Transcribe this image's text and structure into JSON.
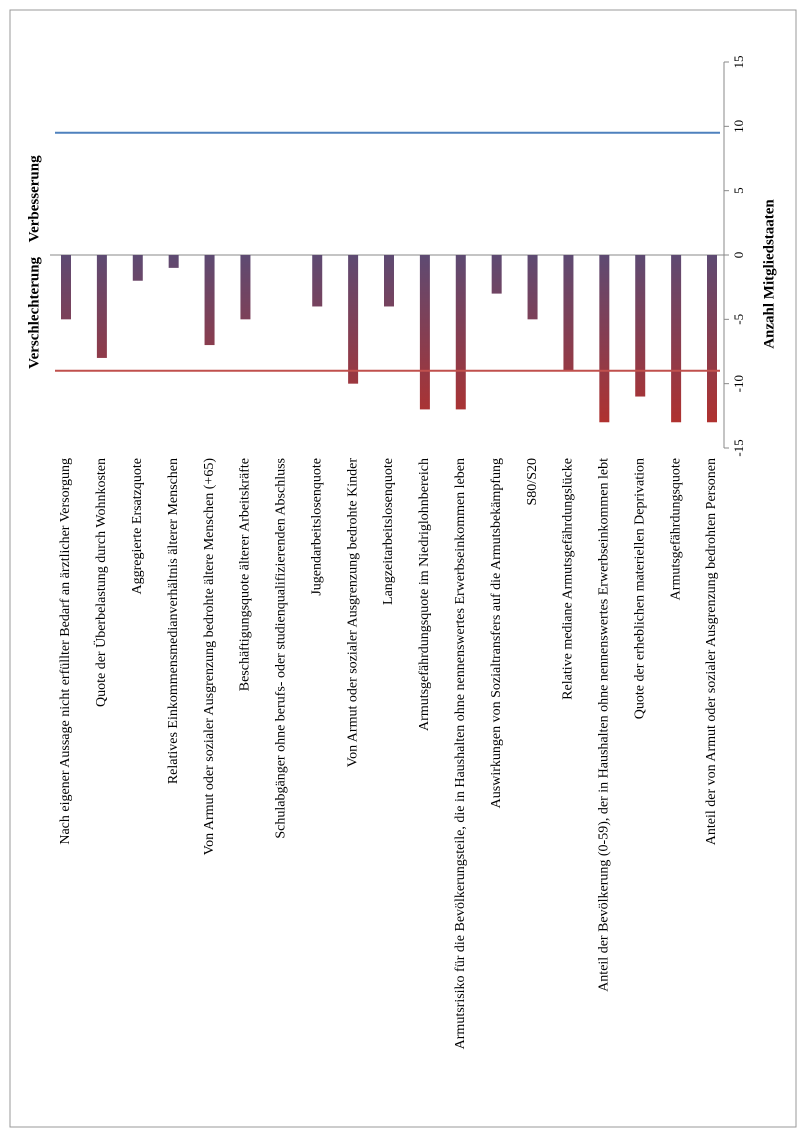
{
  "chart_data": {
    "type": "bar",
    "categories": [
      "Nach eigener Aussage nicht erfüllter Bedarf an ärztlicher Versorgung",
      "Quote der Überbelastung durch Wohnkosten",
      "Aggregierte Ersatzquote",
      "Relatives Einkommensmedianverhältnis älterer Menschen",
      "Von Armut oder sozialer Ausgrenzung bedrohte ältere Menschen (+65)",
      "Beschäftigungsquote älterer Arbeitskräfte",
      "Schulabgänger ohne berufs- oder studienqualifizierenden Abschluss",
      "Jugendarbeitslosenquote",
      "Von Armut oder sozialer Ausgrenzung bedrohte Kinder",
      "Langzeitarbeitslosenquote",
      "Armutsgefährdungsquote im Niedriglohnbereich",
      "Armutsrisiko für die Bevölkerungsteile, die in Haushalten ohne nennenswertes Erwerbseinkommen leben",
      "Auswirkungen von Sozialtransfers auf die Armutsbekämpfung",
      "S80/S20",
      "Relative mediane Armutsgefährdungslücke",
      "Anteil der Bevölkerung (0-59), der in Haushalten ohne nennenswertes Erwerbseinkommen lebt",
      "Quote der erheblichen materiellen Deprivation",
      "Armutsgefährdungsquote",
      "Anteil der von Armut oder sozialer Ausgrenzung bedrohten Personen"
    ],
    "values": [
      -5,
      -8,
      -2,
      -1,
      -7,
      -5,
      0,
      -4,
      -10,
      -4,
      -12,
      -12,
      -3,
      -5,
      -9,
      -13,
      -11,
      -13,
      -13
    ],
    "gradient": [
      "#5e4a72",
      "#b3302c"
    ],
    "ylabel": "Anzahl Mitgliedstaaten",
    "ylim": [
      -15,
      15
    ],
    "yticks": [
      -15,
      -10,
      -5,
      0,
      5,
      10,
      15
    ],
    "annotations": [
      {
        "text": "Verbesserung",
        "value": 9.5,
        "color": "#4f81bd"
      },
      {
        "text": "Verschlechterung",
        "value": -9,
        "color": "#c0504d"
      }
    ]
  }
}
